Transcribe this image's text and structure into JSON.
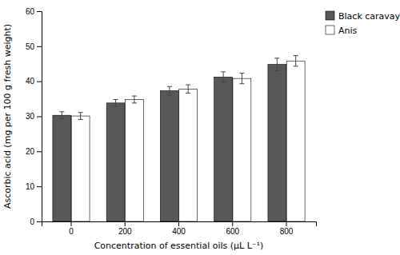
{
  "chart_data": {
    "type": "bar",
    "xlabel": "Concentration of essential oils (μL L⁻¹)",
    "ylabel": "Ascorbic acid (mg per 100 g fresh weight)",
    "categories": [
      "0",
      "200",
      "400",
      "600",
      "800"
    ],
    "series": [
      {
        "name": "Black caravay",
        "color": "#585858",
        "values": [
          30.3,
          33.8,
          37.3,
          41.2,
          44.8
        ],
        "errors": [
          1.0,
          1.0,
          1.2,
          1.5,
          1.8
        ]
      },
      {
        "name": "Anis",
        "color": "#ffffff",
        "values": [
          30.1,
          34.8,
          37.8,
          40.8,
          45.8
        ],
        "errors": [
          1.0,
          1.0,
          1.2,
          1.5,
          1.5
        ]
      }
    ],
    "ylim": [
      0,
      60
    ],
    "yticks": [
      0,
      10,
      20,
      30,
      40,
      50,
      60
    ],
    "grid": false,
    "legend": "right"
  }
}
